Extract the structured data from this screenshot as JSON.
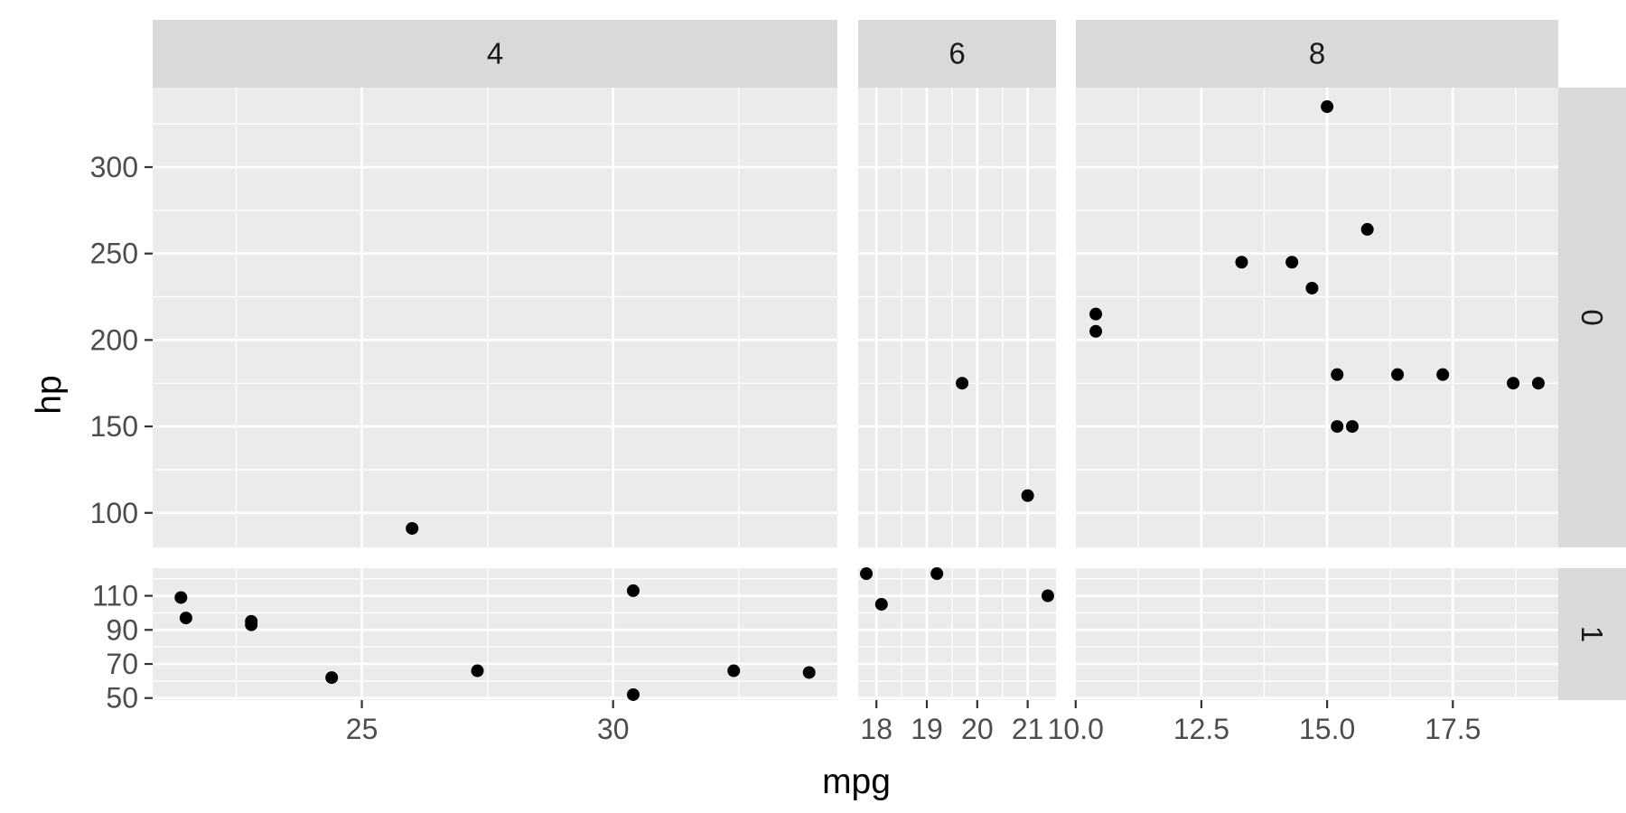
{
  "chart_data": {
    "type": "scatter",
    "xlabel": "mpg",
    "ylabel": "hp",
    "facet_cols": {
      "labels": [
        "4",
        "6",
        "8"
      ]
    },
    "facet_rows": {
      "labels": [
        "0",
        "1"
      ]
    },
    "grid": true,
    "colors": {
      "panel_bg": "#ebebeb",
      "grid": "#ffffff",
      "strip_bg": "#d9d9d9",
      "point": "#000000",
      "tick": "#333333"
    },
    "x_scales": [
      {
        "min": 21.4,
        "max": 33.9,
        "major": [
          25,
          30
        ],
        "minor": [
          22.5,
          27.5,
          32.5
        ],
        "tick_labels": [
          "25",
          "30"
        ]
      },
      {
        "min": 17.8,
        "max": 21.4,
        "major": [
          18,
          19,
          20,
          21
        ],
        "minor": [
          18.5,
          19.5,
          20.5
        ],
        "tick_labels": [
          "18",
          "19",
          "20",
          "21"
        ]
      },
      {
        "min": 10.4,
        "max": 19.2,
        "major": [
          10,
          12.5,
          15,
          17.5
        ],
        "minor": [
          11.25,
          13.75,
          16.25,
          18.75
        ],
        "tick_labels": [
          "10.0",
          "12.5",
          "15.0",
          "17.5"
        ]
      }
    ],
    "y_scales": [
      {
        "min": 91,
        "max": 335,
        "major": [
          100,
          150,
          200,
          250,
          300
        ],
        "minor": [
          125,
          175,
          225,
          275,
          325
        ],
        "tick_labels": [
          "100",
          "150",
          "200",
          "250",
          "300"
        ]
      },
      {
        "min": 52,
        "max": 123,
        "major": [
          50,
          70,
          90,
          110
        ],
        "minor": [
          60,
          80,
          100,
          120
        ],
        "tick_labels": [
          "50",
          "70",
          "90",
          "110"
        ]
      }
    ],
    "panels": [
      {
        "col": 0,
        "row": 0,
        "points": [
          [
            26.0,
            91
          ]
        ]
      },
      {
        "col": 1,
        "row": 0,
        "points": [
          [
            19.7,
            175
          ],
          [
            21.0,
            110
          ]
        ]
      },
      {
        "col": 2,
        "row": 0,
        "points": [
          [
            18.7,
            175
          ],
          [
            14.3,
            245
          ],
          [
            16.4,
            180
          ],
          [
            17.3,
            180
          ],
          [
            15.2,
            180
          ],
          [
            10.4,
            205
          ],
          [
            10.4,
            215
          ],
          [
            14.7,
            230
          ],
          [
            15.5,
            150
          ],
          [
            15.2,
            150
          ],
          [
            13.3,
            245
          ],
          [
            19.2,
            175
          ],
          [
            15.8,
            264
          ],
          [
            15.0,
            335
          ]
        ]
      },
      {
        "col": 0,
        "row": 1,
        "points": [
          [
            22.8,
            93
          ],
          [
            24.4,
            62
          ],
          [
            22.8,
            95
          ],
          [
            32.4,
            66
          ],
          [
            30.4,
            52
          ],
          [
            33.9,
            65
          ],
          [
            21.5,
            97
          ],
          [
            27.3,
            66
          ],
          [
            30.4,
            113
          ],
          [
            21.4,
            109
          ]
        ]
      },
      {
        "col": 1,
        "row": 1,
        "points": [
          [
            21.4,
            110
          ],
          [
            18.1,
            105
          ],
          [
            19.2,
            123
          ],
          [
            17.8,
            123
          ]
        ]
      },
      {
        "col": 2,
        "row": 1,
        "points": []
      }
    ]
  }
}
